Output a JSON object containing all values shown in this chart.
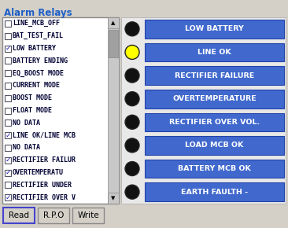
{
  "title": "Alarm Relays",
  "bg_color": "#d4d0c8",
  "right_panel_bg": "#e8e8e8",
  "list_items": [
    {
      "text": "LINE_MCB_OFF",
      "checked": false
    },
    {
      "text": "BAT_TEST_FAIL",
      "checked": false
    },
    {
      "text": "LOW BATTERY",
      "checked": true
    },
    {
      "text": "BATTERY ENDING",
      "checked": false
    },
    {
      "text": "EQ_BOOST MODE",
      "checked": false
    },
    {
      "text": "CURRENT MODE",
      "checked": false
    },
    {
      "text": "BOOST MODE",
      "checked": false
    },
    {
      "text": "FLOAT MODE",
      "checked": false
    },
    {
      "text": "NO DATA",
      "checked": false
    },
    {
      "text": "LINE OK/LINE MCB",
      "checked": true
    },
    {
      "text": "NO DATA",
      "checked": false
    },
    {
      "text": "RECTIFIER FAILUR",
      "checked": true
    },
    {
      "text": "OVERTEMPERATU",
      "checked": true
    },
    {
      "text": "RECTIFIER UNDER",
      "checked": false
    },
    {
      "text": "RECTIFIER OVER V",
      "checked": true
    }
  ],
  "right_items": [
    {
      "label": "LOW BATTERY",
      "led_color": "#111111"
    },
    {
      "label": "LINE OK",
      "led_color": "#ffff00"
    },
    {
      "label": "RECTIFIER FAILURE",
      "led_color": "#111111"
    },
    {
      "label": "OVERTEMPERATURE",
      "led_color": "#111111"
    },
    {
      "label": "RECTIFIER OVER VOL.",
      "led_color": "#111111"
    },
    {
      "label": "LOAD MCB OK",
      "led_color": "#111111"
    },
    {
      "label": "BATTERY MCB OK",
      "led_color": "#111111"
    },
    {
      "label": "EARTH FAULTH -",
      "led_color": "#111111"
    }
  ],
  "btn_labels": [
    "Read",
    "R.P.O",
    "Write"
  ],
  "list_bg": "#ffffff",
  "list_border": "#888888",
  "btn_color": "#d4d0c8",
  "read_btn_border": "#4444cc",
  "blue_btn_color": "#4169cd",
  "blue_btn_text": "#ffffff",
  "title_color": "#1c5ec7",
  "list_text_color": "#000033",
  "check_color": "#2222bb",
  "scrollbar_bg": "#c8c8c8",
  "scrollbar_thumb": "#a0a0a0"
}
